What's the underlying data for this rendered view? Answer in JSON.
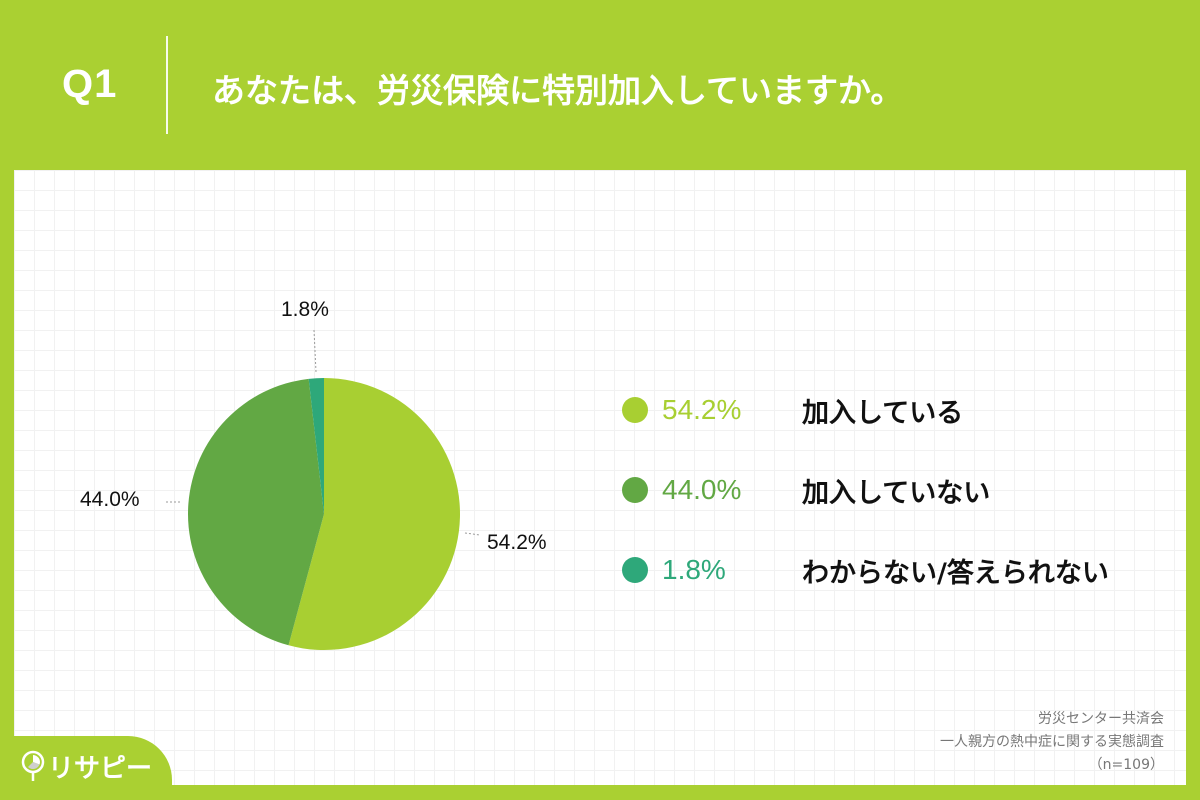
{
  "header": {
    "question_number": "Q1",
    "question_text": "あなたは、労災保険に特別加入していますか。"
  },
  "chart_data": {
    "type": "pie",
    "title": "あなたは、労災保険に特別加入していますか。",
    "categories": [
      "加入している",
      "加入していない",
      "わからない/答えられない"
    ],
    "values": [
      54.2,
      44.0,
      1.8
    ],
    "unit": "%",
    "colors": [
      "#a8cf32",
      "#62a844",
      "#2ea87a"
    ],
    "data_labels": [
      "54.2%",
      "44.0%",
      "1.8%"
    ],
    "start_angle_deg": 0,
    "direction": "clockwise",
    "legend_position": "right",
    "sample_size": "n=109"
  },
  "pie_labels": {
    "slice0": "54.2%",
    "slice1": "44.0%",
    "slice2": "1.8%"
  },
  "legend": {
    "items": [
      {
        "pct": "54.2%",
        "label": "加入している",
        "color": "#a8cf32"
      },
      {
        "pct": "44.0%",
        "label": "加入していない",
        "color": "#62a844"
      },
      {
        "pct": "1.8%",
        "label": "わからない/答えられない",
        "color": "#2ea87a"
      }
    ]
  },
  "source": {
    "line1": "労災センター共済会",
    "line2": "一人親方の熱中症に関する実態調査",
    "line3": "（n=109）"
  },
  "brand": {
    "logo_text": "リサピー",
    "accent_color": "#aad032"
  }
}
